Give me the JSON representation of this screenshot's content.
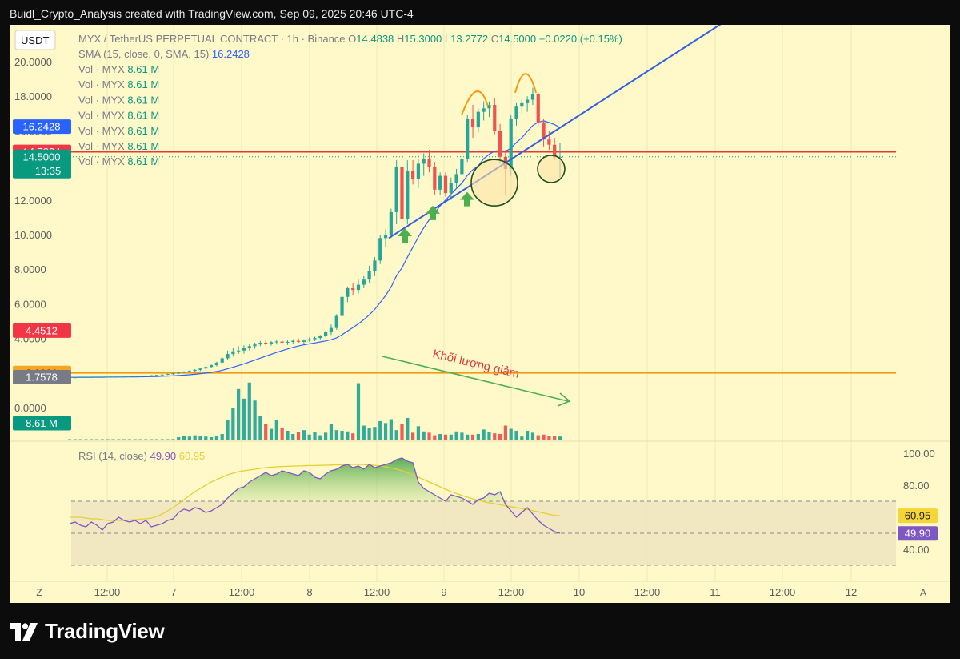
{
  "header": {
    "caption": "Buidl_Crypto_Analysis created with TradingView.com, Sep 09, 2025 20:46 UTC-4"
  },
  "brand": {
    "name": "TradingView"
  },
  "legend": {
    "currency": "USDT",
    "symbol": "MYX / TetherUS PERPETUAL CONTRACT · 1h · Binance",
    "o_label": "O",
    "o_value": "14.4838",
    "h_label": "H",
    "h_value": "15.3000",
    "l_label": "L",
    "l_value": "13.2772",
    "c_label": "C",
    "c_value": "14.5000",
    "change": "+0.0220 (+0.15%)",
    "sma_label": "SMA (15, close, 0, SMA, 15)",
    "sma_value": "16.2428",
    "vol_label": "Vol · MYX",
    "vol_value": "8.61 M",
    "vol_rows": 7
  },
  "price_tags": [
    {
      "text": "16.2428",
      "price": 16.2428,
      "color": "#2962ff"
    },
    {
      "text": "14.7834",
      "price": 14.7834,
      "color": "#f23645"
    },
    {
      "text": "14.5000",
      "price": 14.5,
      "color": "#089981",
      "sub": "13:35"
    },
    {
      "text": "4.4512",
      "price": 4.4512,
      "color": "#f23645"
    },
    {
      "text": "2.0009",
      "price": 2.0009,
      "color": "#f5a623",
      "text_color": "#1a1a1a"
    },
    {
      "text": "1.7578",
      "price": 1.7578,
      "color": "#787b86"
    },
    {
      "text": "8.61 M",
      "price": -0.9,
      "color": "#089981"
    }
  ],
  "annotation": {
    "text": "Khối lượng giảm",
    "color": "#d93c3c"
  },
  "axis": {
    "left_corner": "Z",
    "right_corner": "A"
  },
  "colors": {
    "up": "#26a69a",
    "down": "#ef5350",
    "sma": "#2962ff",
    "trend": "#2f5fe0",
    "hline_red": "#e53935",
    "hline_orange": "#f59a16",
    "rsi": "#7e57c2",
    "rsi_ma": "#e5cf32",
    "arc": "#f29a10",
    "arrow": "#4caf50",
    "circle_fill": "#fbe3a6",
    "circle_stroke": "#1f4f1f"
  },
  "chart_data": {
    "type": "candlestick",
    "title": "MYX / TetherUS PERPETUAL CONTRACT · 1h · Binance",
    "x_ticks": [
      "12:00",
      "7",
      "12:00",
      "8",
      "12:00",
      "9",
      "12:00",
      "10",
      "12:00",
      "11",
      "12:00",
      "12"
    ],
    "y_ticks": [
      "20.0000",
      "18.0000",
      "16.0000",
      "14.0000",
      "12.0000",
      "10.0000",
      "8.0000",
      "6.0000",
      "4.0000",
      "2.0000",
      "0.0000"
    ],
    "ylim": [
      -1.0,
      21.0
    ],
    "horizontal_lines": [
      {
        "price": 14.7834,
        "color": "#e53935"
      },
      {
        "price": 2.0009,
        "color": "#f59a16"
      }
    ],
    "candles": [
      [
        1.75,
        1.76,
        1.74,
        1.75
      ],
      [
        1.75,
        1.76,
        1.74,
        1.75
      ],
      [
        1.75,
        1.76,
        1.74,
        1.76
      ],
      [
        1.76,
        1.77,
        1.75,
        1.76
      ],
      [
        1.76,
        1.77,
        1.75,
        1.76
      ],
      [
        1.76,
        1.77,
        1.75,
        1.77
      ],
      [
        1.77,
        1.78,
        1.76,
        1.77
      ],
      [
        1.77,
        1.78,
        1.76,
        1.78
      ],
      [
        1.78,
        1.79,
        1.77,
        1.78
      ],
      [
        1.78,
        1.8,
        1.77,
        1.79
      ],
      [
        1.79,
        1.81,
        1.78,
        1.8
      ],
      [
        1.8,
        1.82,
        1.79,
        1.81
      ],
      [
        1.81,
        1.83,
        1.8,
        1.82
      ],
      [
        1.82,
        1.84,
        1.81,
        1.83
      ],
      [
        1.83,
        1.86,
        1.82,
        1.85
      ],
      [
        1.85,
        1.88,
        1.84,
        1.87
      ],
      [
        1.87,
        1.9,
        1.85,
        1.89
      ],
      [
        1.89,
        1.93,
        1.87,
        1.91
      ],
      [
        1.91,
        1.96,
        1.88,
        1.94
      ],
      [
        1.94,
        2.0,
        1.9,
        1.98
      ],
      [
        1.98,
        2.05,
        1.94,
        2.02
      ],
      [
        2.02,
        2.1,
        1.98,
        2.08
      ],
      [
        2.08,
        2.15,
        2.03,
        2.12
      ],
      [
        2.12,
        2.22,
        2.08,
        2.18
      ],
      [
        2.18,
        2.3,
        2.12,
        2.26
      ],
      [
        2.26,
        2.4,
        2.2,
        2.35
      ],
      [
        2.35,
        2.5,
        2.28,
        2.45
      ],
      [
        2.45,
        2.65,
        2.38,
        2.6
      ],
      [
        2.6,
        2.95,
        2.5,
        2.85
      ],
      [
        2.85,
        3.3,
        2.75,
        3.1
      ],
      [
        3.1,
        3.45,
        2.95,
        3.25
      ],
      [
        3.25,
        3.55,
        3.1,
        3.3
      ],
      [
        3.3,
        3.6,
        3.12,
        3.45
      ],
      [
        3.45,
        3.7,
        3.3,
        3.55
      ],
      [
        3.55,
        3.75,
        3.4,
        3.65
      ],
      [
        3.65,
        3.85,
        3.55,
        3.75
      ],
      [
        3.75,
        3.9,
        3.6,
        3.7
      ],
      [
        3.7,
        3.85,
        3.58,
        3.78
      ],
      [
        3.78,
        3.92,
        3.65,
        3.82
      ],
      [
        3.82,
        3.95,
        3.7,
        3.75
      ],
      [
        3.75,
        3.9,
        3.62,
        3.8
      ],
      [
        3.8,
        3.95,
        3.7,
        3.86
      ],
      [
        3.86,
        4.0,
        3.75,
        3.8
      ],
      [
        3.8,
        3.95,
        3.7,
        3.88
      ],
      [
        3.88,
        4.05,
        3.8,
        3.95
      ],
      [
        3.95,
        4.1,
        3.85,
        4.02
      ],
      [
        4.02,
        4.2,
        3.95,
        4.15
      ],
      [
        4.15,
        4.45,
        4.05,
        4.35
      ],
      [
        4.35,
        4.8,
        4.2,
        4.6
      ],
      [
        4.6,
        5.4,
        4.5,
        5.3
      ],
      [
        5.3,
        6.6,
        5.1,
        6.4
      ],
      [
        6.4,
        7.0,
        6.1,
        6.9
      ],
      [
        6.9,
        7.2,
        6.5,
        6.8
      ],
      [
        6.8,
        7.4,
        6.6,
        7.1
      ],
      [
        7.1,
        7.6,
        6.9,
        7.4
      ],
      [
        7.4,
        8.2,
        7.2,
        7.9
      ],
      [
        7.9,
        8.7,
        7.6,
        8.5
      ],
      [
        8.5,
        10.0,
        8.3,
        9.8
      ],
      [
        9.8,
        10.3,
        9.3,
        10.0
      ],
      [
        10.0,
        11.5,
        9.8,
        11.3
      ],
      [
        11.3,
        14.3,
        10.6,
        13.9
      ],
      [
        13.9,
        14.6,
        10.4,
        10.9
      ],
      [
        10.9,
        14.3,
        10.6,
        13.7
      ],
      [
        13.7,
        14.3,
        12.9,
        13.2
      ],
      [
        13.2,
        14.4,
        12.7,
        14.1
      ],
      [
        14.1,
        14.7,
        13.4,
        14.4
      ],
      [
        14.4,
        14.9,
        13.6,
        13.9
      ],
      [
        13.9,
        14.2,
        12.3,
        12.6
      ],
      [
        12.6,
        13.6,
        12.3,
        13.4
      ],
      [
        13.4,
        13.6,
        12.2,
        12.4
      ],
      [
        12.4,
        13.3,
        12.0,
        13.0
      ],
      [
        13.0,
        13.8,
        12.7,
        13.5
      ],
      [
        13.5,
        14.6,
        13.3,
        14.4
      ],
      [
        14.4,
        16.9,
        14.2,
        16.7
      ],
      [
        16.7,
        17.5,
        15.6,
        16.2
      ],
      [
        16.2,
        17.3,
        15.9,
        17.1
      ],
      [
        17.1,
        17.7,
        16.6,
        17.3
      ],
      [
        17.3,
        17.7,
        16.8,
        17.5
      ],
      [
        17.5,
        17.9,
        15.8,
        16.0
      ],
      [
        16.0,
        16.4,
        14.1,
        14.5
      ],
      [
        14.5,
        14.9,
        12.3,
        13.8
      ],
      [
        13.8,
        16.9,
        13.4,
        16.7
      ],
      [
        16.7,
        17.6,
        16.3,
        17.4
      ],
      [
        17.4,
        17.9,
        17.0,
        17.6
      ],
      [
        17.6,
        18.0,
        17.1,
        17.8
      ],
      [
        17.8,
        18.5,
        17.5,
        18.1
      ],
      [
        18.1,
        18.2,
        16.3,
        16.5
      ],
      [
        16.5,
        16.7,
        15.1,
        15.5
      ],
      [
        15.5,
        16.0,
        14.9,
        15.2
      ],
      [
        15.2,
        15.6,
        14.3,
        14.48
      ],
      [
        14.48,
        15.3,
        13.28,
        14.5
      ]
    ],
    "volume": [
      0.02,
      0.02,
      0.02,
      0.02,
      0.02,
      0.03,
      0.03,
      0.03,
      0.03,
      0.04,
      0.04,
      0.05,
      0.05,
      0.06,
      0.07,
      0.08,
      0.1,
      0.12,
      0.15,
      0.2,
      0.5,
      0.7,
      0.6,
      0.8,
      0.7,
      0.6,
      0.5,
      0.7,
      1.0,
      3.2,
      5.0,
      8.0,
      6.5,
      9.0,
      6.2,
      3.8,
      2.5,
      1.8,
      3.2,
      2.0,
      1.5,
      1.0,
      1.3,
      1.6,
      0.9,
      1.3,
      0.8,
      1.2,
      2.5,
      1.6,
      1.5,
      1.4,
      1.1,
      8.9,
      2.3,
      1.9,
      2.1,
      3.0,
      2.7,
      3.3,
      1.6,
      2.6,
      3.5,
      1.2,
      2.2,
      1.4,
      1.2,
      0.8,
      1.0,
      0.9,
      0.9,
      1.4,
      1.2,
      0.9,
      0.9,
      1.0,
      1.7,
      1.3,
      1.1,
      1.0,
      2.3,
      1.8,
      1.5,
      0.6,
      1.5,
      1.2,
      0.8,
      0.9,
      0.7,
      0.7,
      0.6
    ],
    "sma": {
      "name": "SMA (15, close, 0, SMA, 15)",
      "period": 15
    },
    "vol_scale_max": 45,
    "rsi": {
      "name": "RSI (14, close)",
      "value_label": "49.90",
      "ma_label": "60.95",
      "ylim": [
        20,
        100
      ],
      "levels": [
        30,
        50,
        70
      ],
      "ticks": [
        "100.00",
        "80.00",
        "40.00"
      ],
      "values": [
        56,
        57,
        55,
        54,
        57,
        55,
        52,
        56,
        57,
        60,
        58,
        57,
        58,
        56,
        58,
        54,
        55,
        56,
        58,
        59,
        63,
        65,
        64,
        66,
        65,
        63,
        64,
        66,
        68,
        72,
        75,
        78,
        79,
        82,
        84,
        86,
        88,
        86,
        87,
        89,
        88,
        87,
        86,
        89,
        88,
        85,
        84,
        87,
        89,
        90,
        92,
        93,
        91,
        92,
        90,
        93,
        91,
        92,
        93,
        94,
        96,
        97,
        95,
        94,
        82,
        78,
        76,
        74,
        72,
        70,
        74,
        73,
        72,
        70,
        68,
        71,
        72,
        75,
        74,
        76,
        68,
        64,
        60,
        63,
        66,
        62,
        58,
        55,
        53,
        51,
        50
      ],
      "ma": [
        60,
        60,
        60,
        59.5,
        59,
        59,
        58.5,
        58,
        58,
        58,
        58,
        58.3,
        58.5,
        58.8,
        59,
        59.5,
        60.5,
        62,
        64,
        66,
        68.5,
        71,
        73.5,
        76,
        78,
        80,
        82,
        83.5,
        85,
        86.5,
        87.5,
        88.5,
        89,
        89.5,
        90,
        90.5,
        91,
        91.3,
        91.5,
        91.7,
        91.8,
        92,
        92,
        92.2,
        92.3,
        92.3,
        92.4,
        92.5,
        92.6,
        92.7,
        92.8,
        92.9,
        93,
        93,
        92.9,
        92.7,
        92.4,
        92,
        91.5,
        90.8,
        90,
        89,
        87.8,
        86.5,
        85,
        83.5,
        82,
        80.5,
        79,
        77.5,
        76,
        74.8,
        73.6,
        72.5,
        71.5,
        70.6,
        69.8,
        69,
        68.4,
        67.8,
        67.2,
        66.6,
        66,
        65.4,
        64.8,
        64.1,
        63.4,
        62.6,
        61.8,
        61.2,
        60.95
      ]
    }
  }
}
